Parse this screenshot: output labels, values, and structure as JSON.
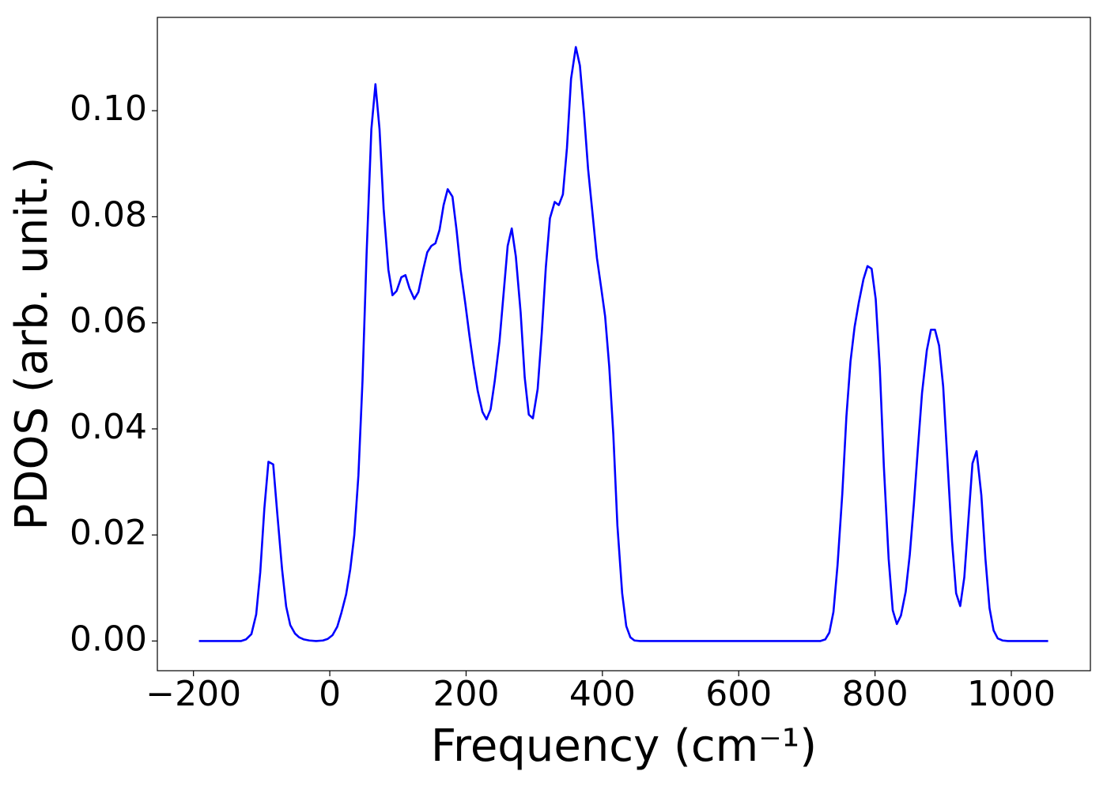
{
  "chart_data": {
    "type": "line",
    "xlabel": "Frequency (cm⁻¹)",
    "ylabel": "PDOS (arb. unit.)",
    "x": [
      -192,
      -130,
      -123,
      -115,
      -108,
      -102,
      -96,
      -90,
      -83,
      -77,
      -70,
      -64,
      -58,
      -51,
      -45,
      -38,
      -30,
      -20,
      -10,
      -3,
      4,
      11,
      17,
      24,
      30,
      36,
      42,
      48,
      54,
      61,
      67,
      73,
      79,
      86,
      92,
      98,
      105,
      111,
      117,
      124,
      130,
      137,
      143,
      149,
      155,
      161,
      167,
      173,
      180,
      186,
      192,
      199,
      205,
      211,
      217,
      224,
      230,
      236,
      242,
      249,
      255,
      261,
      267,
      273,
      280,
      286,
      292,
      298,
      305,
      311,
      317,
      323,
      330,
      336,
      342,
      348,
      354,
      361,
      367,
      373,
      379,
      386,
      392,
      398,
      404,
      410,
      416,
      422,
      429,
      435,
      441,
      447,
      455,
      720,
      727,
      733,
      739,
      745,
      752,
      758,
      764,
      770,
      776,
      783,
      789,
      795,
      801,
      807,
      813,
      820,
      826,
      832,
      838,
      845,
      851,
      857,
      863,
      869,
      876,
      882,
      888,
      894,
      900,
      906,
      913,
      919,
      925,
      931,
      937,
      943,
      949,
      956,
      962,
      968,
      974,
      980,
      987,
      995,
      1054
    ],
    "series": [
      {
        "name": "PDOS",
        "color": "#0000ff",
        "values": [
          0,
          0,
          0.0003,
          0.0013,
          0.005,
          0.013,
          0.025,
          0.0338,
          0.0333,
          0.024,
          0.0135,
          0.0065,
          0.003,
          0.0014,
          0.0007,
          0.0003,
          0.0001,
          0,
          0.0001,
          0.0004,
          0.0011,
          0.0027,
          0.0053,
          0.0088,
          0.0135,
          0.02,
          0.0312,
          0.049,
          0.073,
          0.0965,
          0.105,
          0.0965,
          0.0815,
          0.07,
          0.0652,
          0.066,
          0.0686,
          0.069,
          0.0665,
          0.0645,
          0.0658,
          0.07,
          0.0733,
          0.0745,
          0.075,
          0.0775,
          0.0822,
          0.0852,
          0.0838,
          0.0775,
          0.07,
          0.0635,
          0.0575,
          0.052,
          0.0472,
          0.0432,
          0.0418,
          0.0437,
          0.049,
          0.0565,
          0.0655,
          0.0745,
          0.0778,
          0.0725,
          0.062,
          0.0497,
          0.0427,
          0.042,
          0.0475,
          0.058,
          0.0705,
          0.0797,
          0.0828,
          0.0822,
          0.0842,
          0.093,
          0.106,
          0.112,
          0.1085,
          0.0995,
          0.089,
          0.08,
          0.0722,
          0.0668,
          0.0612,
          0.0518,
          0.039,
          0.0218,
          0.009,
          0.0028,
          0.0007,
          0.0001,
          0,
          0,
          0.0003,
          0.0016,
          0.0055,
          0.0143,
          0.0278,
          0.0423,
          0.0527,
          0.0592,
          0.0637,
          0.0682,
          0.0707,
          0.0702,
          0.0645,
          0.0515,
          0.0328,
          0.0155,
          0.0058,
          0.0032,
          0.0048,
          0.0093,
          0.0163,
          0.0258,
          0.0365,
          0.0468,
          0.0548,
          0.0587,
          0.0587,
          0.0557,
          0.048,
          0.0345,
          0.0188,
          0.009,
          0.0066,
          0.012,
          0.0228,
          0.0335,
          0.0358,
          0.0275,
          0.0155,
          0.0062,
          0.002,
          0.0005,
          0.0001,
          0,
          0
        ]
      }
    ],
    "xlim": [
      -253,
      1116
    ],
    "xticks": [
      {
        "value": -200,
        "label": "−200"
      },
      0,
      200,
      400,
      600,
      800,
      1000
    ],
    "ylim": [
      -0.0056,
      0.1176
    ],
    "yticks": [
      {
        "value": 0,
        "label": "0.00"
      },
      {
        "value": 0.02,
        "label": "0.02"
      },
      {
        "value": 0.04,
        "label": "0.04"
      },
      {
        "value": 0.06,
        "label": "0.06"
      },
      {
        "value": 0.08,
        "label": "0.08"
      },
      {
        "value": 0.1,
        "label": "0.10"
      }
    ],
    "grid": false
  }
}
